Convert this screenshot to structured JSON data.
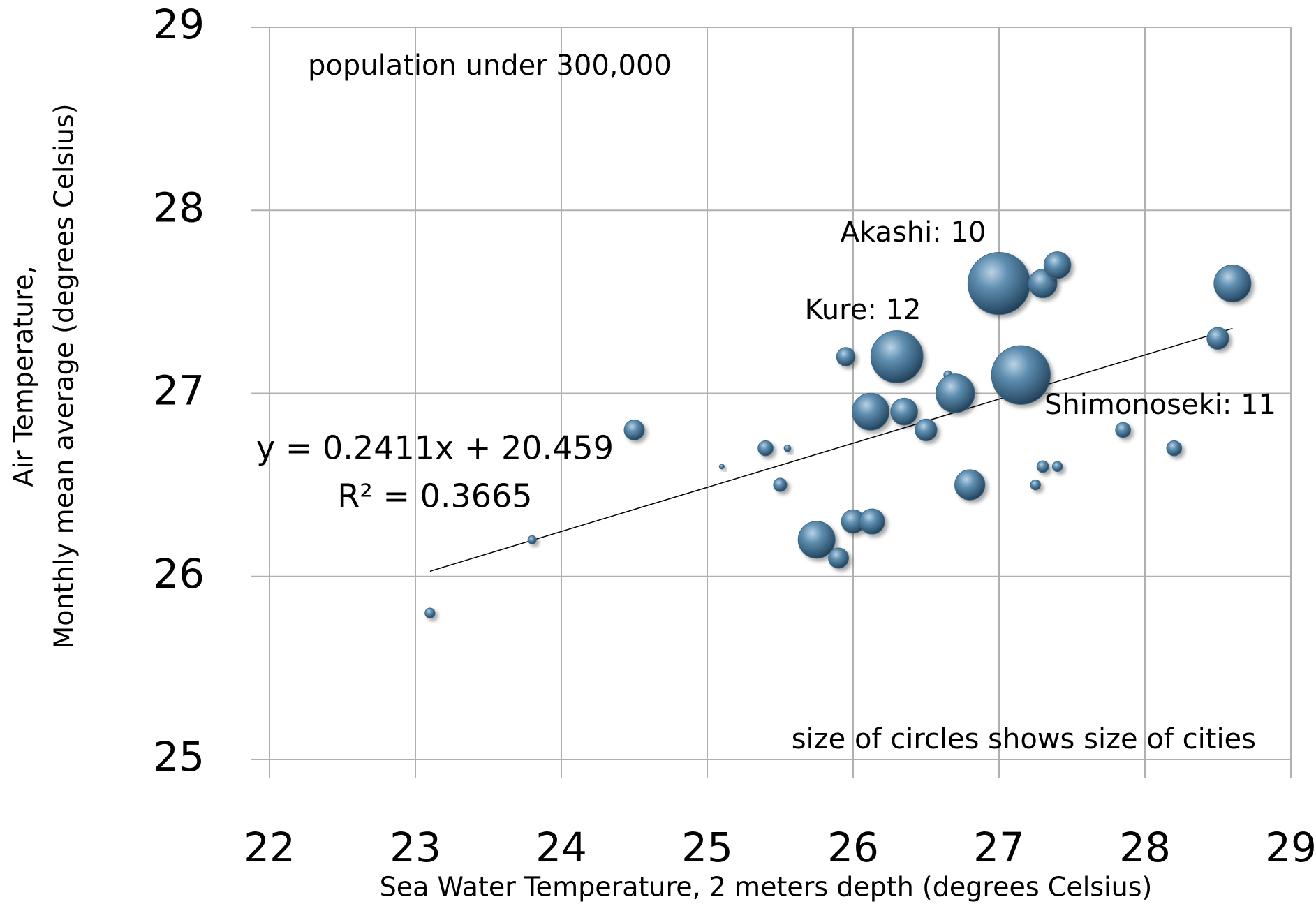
{
  "chart_data": {
    "type": "bubble",
    "x_label": "Sea Water Temperature, 2 meters depth (degrees Celsius)",
    "y_label": [
      "Air Temperature,",
      "Monthly mean average (degrees Celsius)"
    ],
    "notes": [
      "population under 300,000",
      "size of circles shows size of cities"
    ],
    "annotations": [
      "Akashi: 10",
      "Kure: 12",
      "Shimonoseki: 11"
    ],
    "trendline": {
      "equation": "y = 0.2411x + 20.459",
      "r2": "R² = 0.3665",
      "slope": 0.2411,
      "intercept": 20.459,
      "x_range": [
        23.1,
        28.6
      ]
    },
    "x": [
      23.1,
      23.8,
      24.5,
      25.1,
      25.4,
      25.55,
      25.5,
      25.75,
      25.9,
      25.95,
      26.0,
      26.13,
      26.12,
      26.3,
      26.35,
      26.5,
      26.65,
      26.7,
      26.8,
      27.0,
      27.15,
      27.25,
      27.3,
      27.3,
      27.4,
      27.4,
      27.85,
      28.2,
      28.5,
      28.6
    ],
    "y": [
      25.8,
      26.2,
      26.8,
      26.6,
      26.7,
      26.7,
      26.5,
      26.2,
      26.1,
      27.2,
      26.3,
      26.3,
      26.9,
      27.2,
      26.9,
      26.8,
      27.1,
      27.0,
      26.5,
      27.6,
      27.1,
      26.5,
      26.6,
      27.6,
      26.6,
      27.7,
      26.8,
      26.7,
      27.3,
      27.6
    ],
    "size": [
      6,
      5,
      12,
      3,
      9,
      4,
      8,
      22,
      12,
      11,
      14,
      15,
      22,
      31,
      16,
      13,
      5,
      23,
      18,
      37,
      35,
      6,
      7,
      17,
      6,
      16,
      9,
      9,
      13,
      22
    ],
    "color": "#3f6b8a",
    "xlim": [
      22,
      29
    ],
    "xticks": [
      22,
      23,
      24,
      25,
      26,
      27,
      28,
      29
    ],
    "ylim": [
      25,
      29
    ],
    "yticks": [
      25,
      26,
      27,
      28,
      29
    ],
    "grid": true
  }
}
